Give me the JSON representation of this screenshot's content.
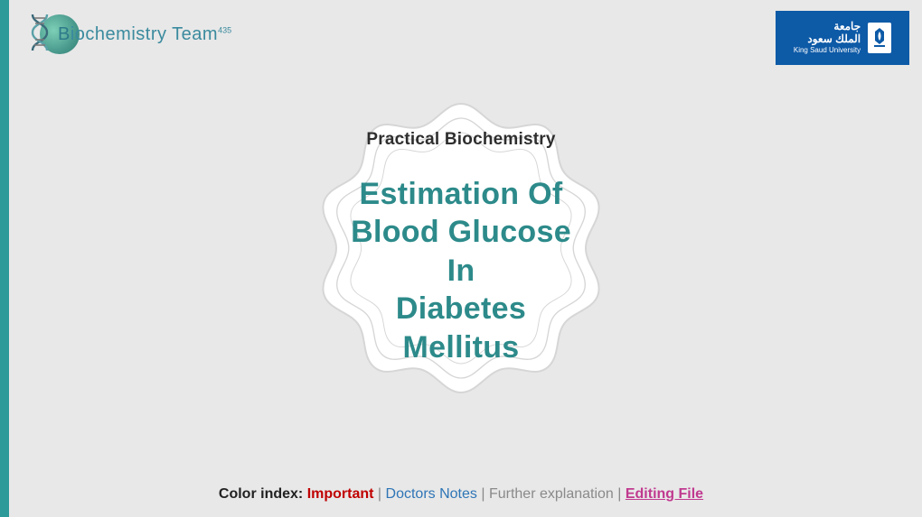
{
  "colors": {
    "accent_teal": "#2d9a9a",
    "title_teal": "#2d8a8a",
    "ksu_blue": "#0d5aa7",
    "bg": "#e8e8e8",
    "badge_fill": "#ffffff",
    "badge_stroke": "#d6d6d6"
  },
  "logo_left": {
    "main": "iochemistry",
    "first_letter": "B",
    "suffix": " Team",
    "superscript": "435"
  },
  "logo_right": {
    "arabic_line1": "جامعة",
    "arabic_line2": "الملك سعود",
    "english": "King Saud University"
  },
  "badge": {
    "subtitle": "Practical Biochemistry",
    "title_line1": "Estimation Of",
    "title_line2": "Blood Glucose In",
    "title_line3": "Diabetes Mellitus"
  },
  "footer": {
    "label": "Color index:",
    "items": [
      {
        "text": "Important",
        "class": "ci-important"
      },
      {
        "text": "Doctors Notes",
        "class": "ci-doctors"
      },
      {
        "text": "Further explanation",
        "class": "ci-further"
      },
      {
        "text": "Editing File",
        "class": "ci-editing"
      }
    ],
    "separator": " | "
  }
}
